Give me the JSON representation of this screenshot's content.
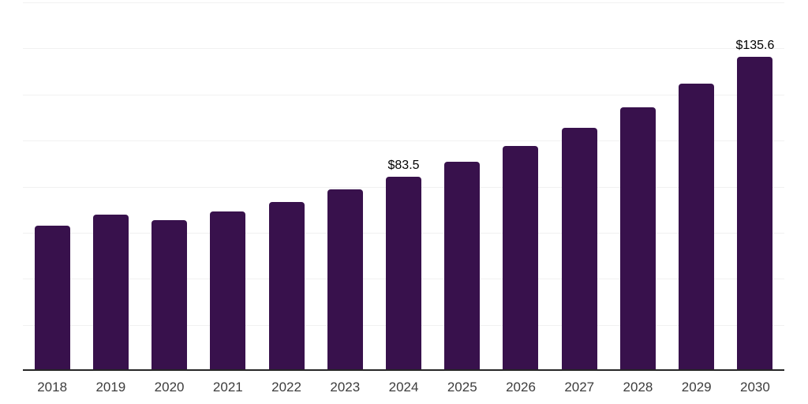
{
  "chart_data": {
    "type": "bar",
    "title": "",
    "categories": [
      "2018",
      "2019",
      "2020",
      "2021",
      "2022",
      "2023",
      "2024",
      "2025",
      "2026",
      "2027",
      "2028",
      "2029",
      "2030"
    ],
    "values": [
      62.4,
      67.2,
      64.6,
      68.4,
      72.8,
      78.0,
      83.5,
      90.0,
      97.0,
      104.7,
      113.9,
      124.2,
      135.6
    ],
    "value_labels": [
      "",
      "",
      "",
      "",
      "",
      "",
      "$83.5",
      "",
      "",
      "",
      "",
      "",
      "$135.6"
    ],
    "xlabel": "",
    "ylabel": "",
    "ylim": [
      0,
      160
    ],
    "gridline_step": 20,
    "grid": "horizontal",
    "legend_position": "none",
    "y_tick_labels_visible": false,
    "colors": {
      "bar": "#38114C",
      "axis_line": "#262626",
      "gridline": "#f1f1f1",
      "x_tick_label": "#3d3d3d",
      "value_label": "#000000",
      "background": "#ffffff"
    }
  }
}
